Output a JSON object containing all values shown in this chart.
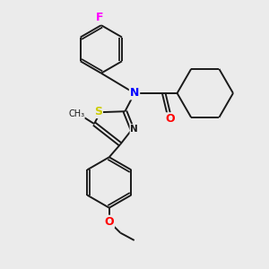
{
  "bg_color": "#ebebeb",
  "bond_color": "#1a1a1a",
  "atom_colors": {
    "F": "#ff00ff",
    "N": "#0000ff",
    "O": "#ff0000",
    "S": "#cccc00",
    "C": "#1a1a1a"
  },
  "lw": 1.4,
  "xlim": [
    0,
    10
  ],
  "ylim": [
    0,
    10
  ]
}
